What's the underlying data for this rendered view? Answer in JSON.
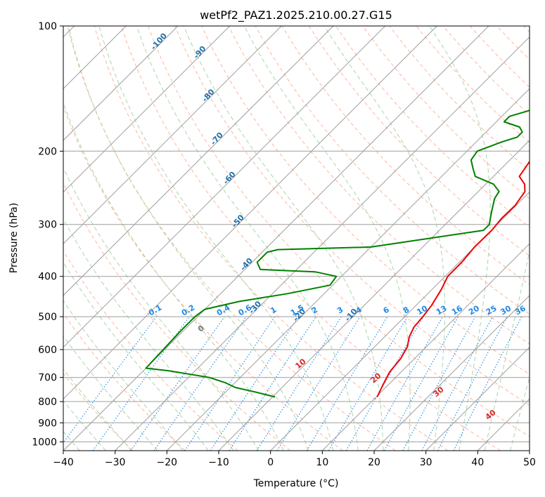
{
  "chart_data": {
    "type": "line",
    "subtype": "skew-t log-p diagram",
    "title": "wetPf2_PAZ1.2025.210.00.27.G15",
    "xlabel": "Temperature (°C)",
    "ylabel": "Pressure (hPa)",
    "xlim": [
      -40,
      50
    ],
    "ylim": [
      1050,
      100
    ],
    "yscale": "log",
    "grid": true,
    "x_ticks": [
      "−40",
      "−30",
      "−20",
      "−10",
      "0",
      "10",
      "20",
      "30",
      "40",
      "50"
    ],
    "y_ticks": [
      "100",
      "200",
      "300",
      "400",
      "500",
      "600",
      "700",
      "800",
      "900",
      "1000"
    ],
    "y_tick_values": [
      100,
      200,
      300,
      400,
      500,
      600,
      700,
      800,
      900,
      1000
    ],
    "colors": {
      "temperature": "#ee0000",
      "dewpoint": "#008000",
      "isotherm": "#9e9e9e",
      "dry_adiabat": "#ffb59c",
      "moist_adiabat": "#a8d6a8",
      "mixing_ratio": "#1e88e5",
      "isotherm_label": "#1f6fa8",
      "moist_label": "#d62728",
      "zero_label": "#777777",
      "title": "#000000"
    },
    "series": [
      {
        "key": "temperature",
        "x": [
          10.2,
          9.0,
          7.8,
          7.5,
          7.3,
          6.3,
          4.8,
          3.8,
          3.5,
          3.0,
          1.8,
          0.5,
          0.5,
          0.0,
          0.1,
          -0.3,
          -0.2,
          -1.0,
          -2.5,
          -5.0,
          -6.0,
          -4.5,
          -3.5,
          -1.5,
          -0.5,
          1.5,
          3.5,
          5.5,
          8.0,
          9.0,
          10.5,
          11.5
        ],
        "y": [
          780,
          730,
          680,
          650,
          630,
          590,
          560,
          530,
          500,
          470,
          430,
          400,
          370,
          340,
          310,
          290,
          270,
          250,
          240,
          230,
          210,
          195,
          180,
          160,
          150,
          140,
          130,
          120,
          110,
          105,
          100,
          97
        ]
      },
      {
        "key": "dewpoint",
        "x": [
          -9.5,
          -14.0,
          -19.0,
          -22.0,
          -26.0,
          -35.0,
          -40.0,
          -40.5,
          -40.5,
          -40.0,
          -35.0,
          -27.0,
          -20.5,
          -21.0,
          -26.0,
          -37.0,
          -39.0,
          -39.0,
          -37.5,
          -20.0,
          -1.5,
          -1.5,
          -2.5,
          -3.5,
          -5.5,
          -6.0,
          -8.5,
          -13.5,
          -15.5,
          -17.5,
          -18.0,
          -15.0,
          -13.0,
          -13.0,
          -14.5,
          -18.5,
          -18.5,
          -16.0,
          -12.0,
          -10.5,
          -6.5
        ],
        "y": [
          780,
          760,
          740,
          720,
          700,
          675,
          665,
          540,
          500,
          480,
          460,
          440,
          420,
          400,
          390,
          385,
          370,
          350,
          345,
          340,
          310,
          300,
          290,
          280,
          260,
          250,
          240,
          230,
          220,
          210,
          200,
          190,
          185,
          180,
          175,
          170,
          165,
          160,
          150,
          140,
          110
        ]
      }
    ],
    "isotherm_labels": [
      "-100",
      "-90",
      "-80",
      "-70",
      "-60",
      "-50",
      "-40",
      "-30",
      "-20",
      "-10"
    ],
    "isotherm_label_values": [
      -100,
      -90,
      -80,
      -70,
      -60,
      -50,
      -40,
      -30,
      -20,
      -10
    ],
    "mixing_ratio_labels": [
      "0.1",
      "0.2",
      "0.4",
      "0.6",
      "1",
      "1.5",
      "2",
      "3",
      "4",
      "6",
      "8",
      "10",
      "13",
      "16",
      "20",
      "25",
      "30",
      "36"
    ],
    "mixing_ratio_values": [
      0.1,
      0.2,
      0.4,
      0.6,
      1,
      1.5,
      2,
      3,
      4,
      6,
      8,
      10,
      13,
      16,
      20,
      25,
      30,
      36
    ],
    "moist_adiabat_labels": [
      "0",
      "10",
      "20",
      "30",
      "40"
    ],
    "moist_adiabat_values": [
      0,
      10,
      20,
      30,
      40
    ]
  }
}
